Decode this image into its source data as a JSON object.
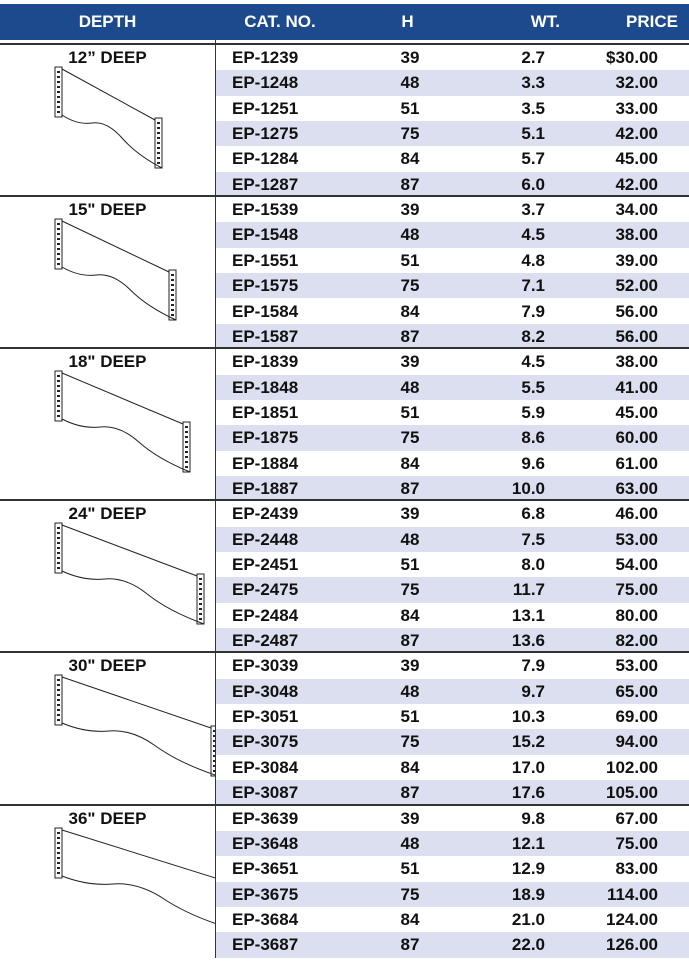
{
  "header": [
    "DEPTH",
    "CAT. NO.",
    "H",
    "WT.",
    "PRICE"
  ],
  "groups": [
    {
      "depth": "12” DEEP",
      "rows": [
        [
          "EP-1239",
          "39",
          "2.7",
          "$30.00"
        ],
        [
          "EP-1248",
          "48",
          "3.3",
          "32.00"
        ],
        [
          "EP-1251",
          "51",
          "3.5",
          "33.00"
        ],
        [
          "EP-1275",
          "75",
          "5.1",
          "42.00"
        ],
        [
          "EP-1284",
          "84",
          "5.7",
          "45.00"
        ],
        [
          "EP-1287",
          "87",
          "6.0",
          "42.00"
        ]
      ]
    },
    {
      "depth": "15\" DEEP",
      "rows": [
        [
          "EP-1539",
          "39",
          "3.7",
          "34.00"
        ],
        [
          "EP-1548",
          "48",
          "4.5",
          "38.00"
        ],
        [
          "EP-1551",
          "51",
          "4.8",
          "39.00"
        ],
        [
          "EP-1575",
          "75",
          "7.1",
          "52.00"
        ],
        [
          "EP-1584",
          "84",
          "7.9",
          "56.00"
        ],
        [
          "EP-1587",
          "87",
          "8.2",
          "56.00"
        ]
      ]
    },
    {
      "depth": "18\" DEEP",
      "rows": [
        [
          "EP-1839",
          "39",
          "4.5",
          "38.00"
        ],
        [
          "EP-1848",
          "48",
          "5.5",
          "41.00"
        ],
        [
          "EP-1851",
          "51",
          "5.9",
          "45.00"
        ],
        [
          "EP-1875",
          "75",
          "8.6",
          "60.00"
        ],
        [
          "EP-1884",
          "84",
          "9.6",
          "61.00"
        ],
        [
          "EP-1887",
          "87",
          "10.0",
          "63.00"
        ]
      ]
    },
    {
      "depth": "24\" DEEP",
      "rows": [
        [
          "EP-2439",
          "39",
          "6.8",
          "46.00"
        ],
        [
          "EP-2448",
          "48",
          "7.5",
          "53.00"
        ],
        [
          "EP-2451",
          "51",
          "8.0",
          "54.00"
        ],
        [
          "EP-2475",
          "75",
          "11.7",
          "75.00"
        ],
        [
          "EP-2484",
          "84",
          "13.1",
          "80.00"
        ],
        [
          "EP-2487",
          "87",
          "13.6",
          "82.00"
        ]
      ]
    },
    {
      "depth": "30\" DEEP",
      "rows": [
        [
          "EP-3039",
          "39",
          "7.9",
          "53.00"
        ],
        [
          "EP-3048",
          "48",
          "9.7",
          "65.00"
        ],
        [
          "EP-3051",
          "51",
          "10.3",
          "69.00"
        ],
        [
          "EP-3075",
          "75",
          "15.2",
          "94.00"
        ],
        [
          "EP-3084",
          "84",
          "17.0",
          "102.00"
        ],
        [
          "EP-3087",
          "87",
          "17.6",
          "105.00"
        ]
      ]
    },
    {
      "depth": "36\" DEEP",
      "rows": [
        [
          "EP-3639",
          "39",
          "9.8",
          "67.00"
        ],
        [
          "EP-3648",
          "48",
          "12.1",
          "75.00"
        ],
        [
          "EP-3651",
          "51",
          "12.9",
          "83.00"
        ],
        [
          "EP-3675",
          "75",
          "18.9",
          "114.00"
        ],
        [
          "EP-3684",
          "84",
          "21.0",
          "124.00"
        ],
        [
          "EP-3687",
          "87",
          "22.0",
          "126.00"
        ]
      ]
    }
  ]
}
